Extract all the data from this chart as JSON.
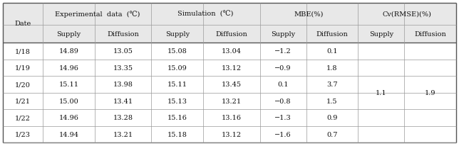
{
  "dates": [
    "1/18",
    "1/19",
    "1/20",
    "1/21",
    "1/22",
    "1/23"
  ],
  "exp_supply": [
    "14.89",
    "14.96",
    "15.11",
    "15.00",
    "14.96",
    "14.94"
  ],
  "exp_diffusion": [
    "13.05",
    "13.35",
    "13.98",
    "13.41",
    "13.28",
    "13.21"
  ],
  "sim_supply": [
    "15.08",
    "15.09",
    "15.11",
    "15.13",
    "15.16",
    "15.18"
  ],
  "sim_diffusion": [
    "13.04",
    "13.12",
    "13.45",
    "13.21",
    "13.16",
    "13.12"
  ],
  "mbe_supply": [
    "−1.2",
    "−0.9",
    "0.1",
    "−0.8",
    "−1.3",
    "−1.6"
  ],
  "mbe_diffusion": [
    "0.1",
    "1.8",
    "3.7",
    "1.5",
    "0.9",
    "0.7"
  ],
  "cv_supply": "1.1",
  "cv_diffusion": "1.9",
  "header_bg": "#e8e8e8",
  "cell_bg": "#ffffff",
  "line_color_thick": "#555555",
  "line_color_thin": "#999999",
  "text_color": "#111111",
  "font_size": 7.0,
  "font_family": "serif",
  "fig_width": 6.44,
  "fig_height": 2.07,
  "dpi": 100
}
